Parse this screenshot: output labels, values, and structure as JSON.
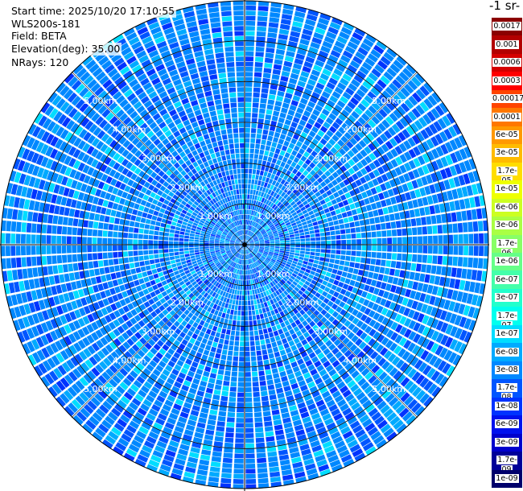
{
  "info": {
    "start_time": "Start time: 2025/10/20 17:10:55",
    "device": "WLS200s-181",
    "field": "Field: BETA",
    "elevation": "Elevation(deg): 35.00",
    "nrays": "NRays: 120"
  },
  "colorbar": {
    "title": "-1 sr-",
    "labels": [
      "0.0017",
      "0.001",
      "0.0006",
      "0.0003",
      "0.00017",
      "0.0001",
      "6e-05",
      "3e-05",
      "1.7e-05",
      "1e-05",
      "6e-06",
      "3e-06",
      "1.7e-06",
      "1e-06",
      "6e-07",
      "3e-07",
      "1.7e-07",
      "1e-07",
      "6e-08",
      "3e-08",
      "1.7e-08",
      "1e-08",
      "6e-09",
      "3e-09",
      "1.7e-09",
      "1e-09"
    ],
    "colors": [
      "#8b0000",
      "#b30000",
      "#d40000",
      "#ff0000",
      "#ff4400",
      "#ff7700",
      "#ff9900",
      "#ffbb00",
      "#ffdd00",
      "#eeff00",
      "#ccff22",
      "#aaff44",
      "#88ff66",
      "#66ff88",
      "#44ffaa",
      "#22ffcc",
      "#00ffee",
      "#00ddff",
      "#00aaff",
      "#0088ff",
      "#0055ff",
      "#0033ff",
      "#0011ee",
      "#0000cc",
      "#000099",
      "#00006b"
    ]
  },
  "chart_data": {
    "type": "heatmap",
    "projection": "polar-ppi",
    "field": "BETA",
    "elevation_deg": 35.0,
    "n_rays": 120,
    "max_range_km": 6.0,
    "range_rings_km": [
      1.0,
      2.0,
      3.0,
      4.0,
      5.0
    ],
    "ring_labels": [
      "1.00km",
      "2.00km",
      "3.00km",
      "4.00km",
      "5.00km"
    ],
    "dominant_value_range": [
      "3e-08",
      "1.7e-07"
    ],
    "dominant_colors": [
      "#0088ff",
      "#0055ff",
      "#00aaff",
      "#00ddff",
      "#0033ff"
    ]
  }
}
